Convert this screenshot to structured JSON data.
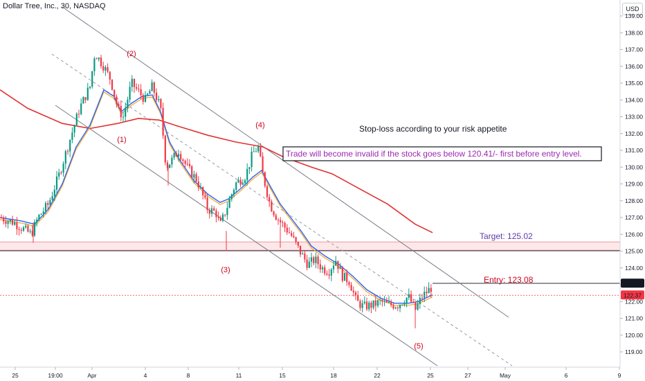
{
  "header": {
    "title": "Dollar Tree, Inc., 30, NASDAQ",
    "currency": "USD"
  },
  "chart_data": {
    "type": "candlestick",
    "y_ticks": [
      "119.00",
      "120.00",
      "121.00",
      "122.00",
      "123.00",
      "124.00",
      "125.00",
      "126.00",
      "127.00",
      "128.00",
      "129.00",
      "130.00",
      "131.00",
      "132.00",
      "133.00",
      "134.00",
      "135.00",
      "136.00",
      "137.00",
      "138.00",
      "139.00"
    ],
    "x_ticks": [
      "25",
      "19:00",
      "Apr",
      "4",
      "8",
      "11",
      "15",
      "18",
      "22",
      "25",
      "27",
      "May",
      "6",
      "9"
    ],
    "ylim": [
      118.3,
      139.6
    ],
    "price_path": [
      [
        0,
        127.0
      ],
      [
        20,
        126.7
      ],
      [
        45,
        126.0
      ],
      [
        55,
        127.0
      ],
      [
        70,
        127.8
      ],
      [
        85,
        129.5
      ],
      [
        100,
        131.5
      ],
      [
        115,
        133.5
      ],
      [
        130,
        134.8
      ],
      [
        137,
        136.8
      ],
      [
        150,
        136.0
      ],
      [
        160,
        135.2
      ],
      [
        170,
        133.5
      ],
      [
        178,
        133.0
      ],
      [
        190,
        135.0
      ],
      [
        200,
        134.5
      ],
      [
        210,
        134.0
      ],
      [
        220,
        134.8
      ],
      [
        232,
        133.5
      ],
      [
        240,
        130.0
      ],
      [
        250,
        130.5
      ],
      [
        258,
        131.0
      ],
      [
        270,
        130.0
      ],
      [
        285,
        129.2
      ],
      [
        300,
        127.5
      ],
      [
        312,
        127.3
      ],
      [
        318,
        126.5
      ],
      [
        327,
        127.5
      ],
      [
        340,
        129.0
      ],
      [
        355,
        129.5
      ],
      [
        365,
        130.8
      ],
      [
        373,
        131.2
      ],
      [
        380,
        129.5
      ],
      [
        390,
        127.8
      ],
      [
        400,
        127.0
      ],
      [
        410,
        126.5
      ],
      [
        420,
        126.0
      ],
      [
        433,
        125.0
      ],
      [
        445,
        124.2
      ],
      [
        455,
        124.5
      ],
      [
        465,
        124.0
      ],
      [
        475,
        123.8
      ],
      [
        485,
        124.5
      ],
      [
        495,
        123.5
      ],
      [
        505,
        123.2
      ],
      [
        515,
        122.0
      ],
      [
        525,
        121.7
      ],
      [
        540,
        121.8
      ],
      [
        550,
        122.0
      ],
      [
        560,
        121.8
      ],
      [
        575,
        121.8
      ],
      [
        590,
        122.3
      ],
      [
        600,
        121.5
      ],
      [
        610,
        122.3
      ],
      [
        625,
        122.9
      ]
    ],
    "ema_fast_label": "blue moving average",
    "ma_slow_label": "red moving average",
    "annotations": {
      "waves": [
        "(1)",
        "(2)",
        "(3)",
        "(4)",
        "(5)"
      ],
      "stoploss_note": "Stop-loss according to your risk appetite",
      "invalid_note": "Trade will become invalid if the stock goes below 120.41/- first before entry level.",
      "target_label": "Target: 125.02",
      "entry_label": "Entry: 123.08",
      "target_value": 125.02,
      "entry_value": 123.08
    },
    "price_tags": [
      {
        "value": "123.07",
        "color": "#131722"
      },
      {
        "value": "122.37",
        "color": "#f23645"
      }
    ],
    "colors": {
      "up": "#089981",
      "down": "#f23645",
      "ma_red": "#e03131",
      "ema_blue": "#2962ff",
      "ema_orange": "#f5a623",
      "channel": "#787b86",
      "wave": "#d0021b",
      "note_purple": "#9c27b0",
      "target_text": "#5e3aa8"
    }
  }
}
